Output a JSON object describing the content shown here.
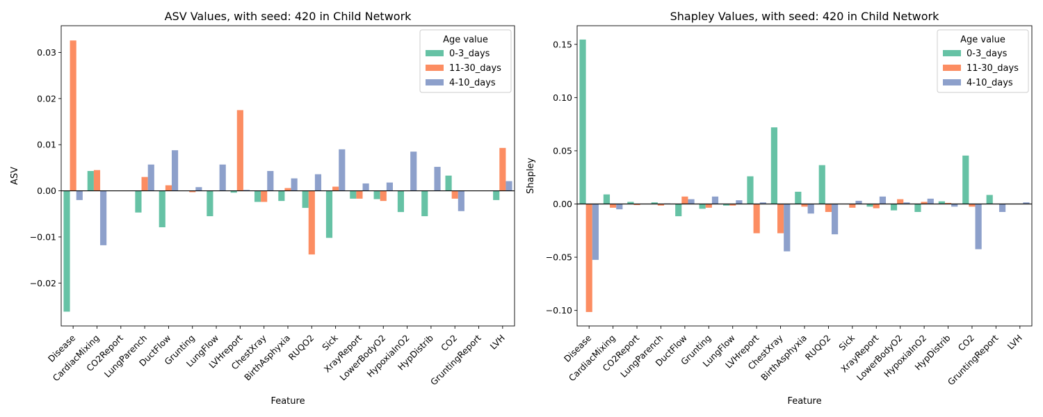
{
  "chart_data": [
    {
      "type": "bar",
      "title": "ASV Values, with seed: 420 in Child Network",
      "xlabel": "Feature",
      "ylabel": "ASV",
      "ylim": [
        -0.0293,
        0.0358
      ],
      "yticks": [
        -0.02,
        -0.01,
        0.0,
        0.01,
        0.02,
        0.03
      ],
      "ytick_labels": [
        "−0.02",
        "−0.01",
        "0.00",
        "0.01",
        "0.02",
        "0.03"
      ],
      "legend": {
        "title": "Age value",
        "placement": "top-right"
      },
      "categories": [
        "Disease",
        "CardiacMixing",
        "CO2Report",
        "LungParench",
        "DuctFlow",
        "Grunting",
        "LungFlow",
        "LVHreport",
        "ChestXray",
        "BirthAsphyxia",
        "RUQO2",
        "Sick",
        "XrayReport",
        "LowerBodyO2",
        "HypoxiaInO2",
        "HypDistrib",
        "CO2",
        "GruntingReport",
        "LVH"
      ],
      "series": [
        {
          "name": "0-3_days",
          "color": "#66c2a5",
          "values": [
            -0.0262,
            0.0043,
            0.0,
            -0.0047,
            -0.0079,
            0.0,
            -0.0055,
            -0.0004,
            -0.0024,
            -0.0022,
            -0.0037,
            -0.0102,
            -0.0017,
            -0.0018,
            -0.0046,
            -0.0055,
            0.0033,
            0.0,
            -0.002
          ]
        },
        {
          "name": "11-30_days",
          "color": "#fc8d62",
          "values": [
            0.0326,
            0.0045,
            0.0,
            0.003,
            0.0012,
            -0.0003,
            0.0,
            0.0175,
            -0.0024,
            0.0006,
            -0.0138,
            0.0009,
            -0.0017,
            -0.0022,
            0.0,
            0.0,
            -0.0017,
            0.0,
            0.0093
          ]
        },
        {
          "name": "4-10_days",
          "color": "#8da0cb",
          "values": [
            -0.002,
            -0.0118,
            0.0,
            0.0057,
            0.0088,
            0.0008,
            0.0057,
            0.0002,
            0.0043,
            0.0027,
            0.0036,
            0.009,
            0.0016,
            0.0018,
            0.0085,
            0.0052,
            -0.0044,
            0.0,
            0.0021
          ]
        }
      ]
    },
    {
      "type": "bar",
      "title": "Shapley Values, with seed: 420 in Child Network",
      "xlabel": "Feature",
      "ylabel": "Shapley",
      "ylim": [
        -0.1146,
        0.1675
      ],
      "yticks": [
        -0.1,
        -0.05,
        0.0,
        0.05,
        0.1,
        0.15
      ],
      "ytick_labels": [
        "−0.10",
        "−0.05",
        "0.00",
        "0.05",
        "0.10",
        "0.15"
      ],
      "legend": {
        "title": "Age value",
        "placement": "top-right"
      },
      "categories": [
        "Disease",
        "CardiacMixing",
        "CO2Report",
        "LungParench",
        "DuctFlow",
        "Grunting",
        "LungFlow",
        "LVHreport",
        "ChestXray",
        "BirthAsphyxia",
        "RUQO2",
        "Sick",
        "XrayReport",
        "LowerBodyO2",
        "HypoxiaInO2",
        "HypDistrib",
        "CO2",
        "GruntingReport",
        "LVH"
      ],
      "series": [
        {
          "name": "0-3_days",
          "color": "#66c2a5",
          "values": [
            0.1545,
            0.009,
            0.002,
            0.0015,
            -0.0115,
            -0.0045,
            -0.0015,
            0.026,
            0.072,
            0.0115,
            0.0365,
            0.0,
            -0.0025,
            -0.006,
            -0.0075,
            0.0025,
            0.0455,
            0.0085,
            0.0
          ]
        },
        {
          "name": "11-30_days",
          "color": "#fc8d62",
          "values": [
            -0.1015,
            -0.0035,
            -0.001,
            -0.0015,
            0.007,
            -0.0035,
            -0.0015,
            -0.0275,
            -0.0275,
            -0.0025,
            -0.0075,
            -0.0035,
            -0.004,
            0.0045,
            0.002,
            0.001,
            -0.0025,
            0.0,
            0.0
          ]
        },
        {
          "name": "4-10_days",
          "color": "#8da0cb",
          "values": [
            -0.0525,
            -0.005,
            0.0,
            0.0005,
            0.0045,
            0.007,
            0.0035,
            0.0015,
            -0.0445,
            -0.009,
            -0.0285,
            0.003,
            0.007,
            0.0015,
            0.005,
            -0.0025,
            -0.0425,
            -0.0075,
            0.0015
          ]
        }
      ]
    }
  ]
}
